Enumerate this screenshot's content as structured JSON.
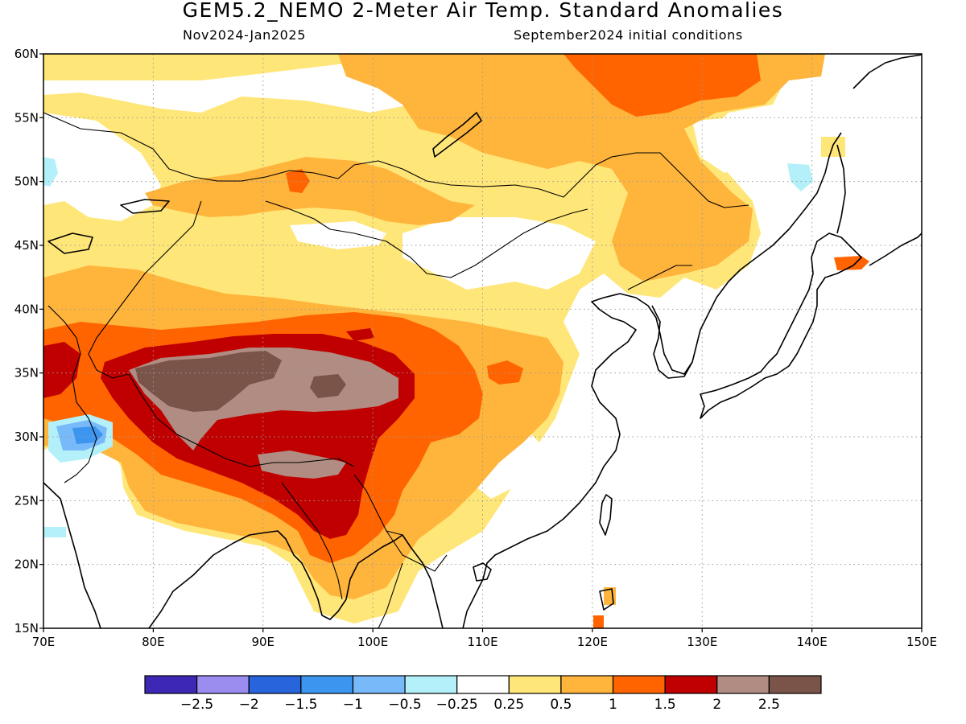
{
  "header": {
    "title": "GEM5.2_NEMO 2-Meter Air Temp. Standard Anomalies",
    "period": "Nov2024-Jan2025",
    "initial_conditions": "September2024 initial conditions"
  },
  "map": {
    "projection": "lat-lon",
    "lon_range": [
      70,
      150
    ],
    "lat_range": [
      15,
      60
    ],
    "lon_ticks": [
      "70E",
      "80E",
      "90E",
      "100E",
      "110E",
      "120E",
      "130E",
      "140E",
      "150E"
    ],
    "lat_ticks": [
      "15N",
      "20N",
      "25N",
      "30N",
      "35N",
      "40N",
      "45N",
      "50N",
      "55N",
      "60N"
    ],
    "lon_tick_values": [
      70,
      80,
      90,
      100,
      110,
      120,
      130,
      140,
      150
    ],
    "lat_tick_values": [
      15,
      20,
      25,
      30,
      35,
      40,
      45,
      50,
      55,
      60
    ],
    "gridlines": "dotted",
    "coastline_color": "#000000"
  },
  "colorbar": {
    "colors": [
      "#3c28b4",
      "#9b8cf0",
      "#2864dc",
      "#3c96f0",
      "#78b9fa",
      "#b4f0fa",
      "#ffffff",
      "#ffe678",
      "#ffb43c",
      "#ff6400",
      "#c00000",
      "#b08c82",
      "#7a5448"
    ],
    "labels": [
      "-2.5",
      "-2",
      "-1.5",
      "-1",
      "-0.5",
      "-0.25",
      "0.25",
      "0.5",
      "1",
      "1.5",
      "2",
      "2.5"
    ]
  },
  "anomaly_colors": {
    "0.25-0.5": "#ffe678",
    "0.5-1": "#ffb43c",
    "1-1.5": "#ff6400",
    "1.5-2": "#c00000",
    "2-2.5": "#b08c82",
    "gt2.5": "#7a5448",
    "neg0.5": "#b4f0fa",
    "neg1": "#78b9fa",
    "neg1.5": "#3c96f0"
  }
}
